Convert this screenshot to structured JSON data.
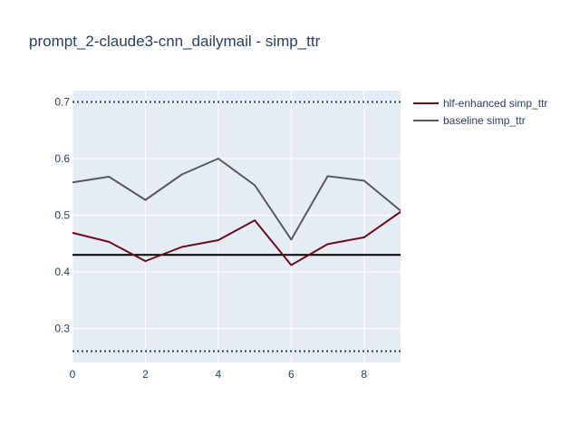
{
  "chart_data": {
    "type": "line",
    "title": "prompt_2-claude3-cnn_dailymail - simp_ttr",
    "xlabel": "",
    "ylabel": "",
    "x": [
      0,
      1,
      2,
      3,
      4,
      5,
      6,
      7,
      8,
      9
    ],
    "xlim": [
      0,
      9
    ],
    "ylim": [
      0.24,
      0.72
    ],
    "x_ticks": [
      0,
      2,
      4,
      6,
      8
    ],
    "y_ticks": [
      0.3,
      0.4,
      0.5,
      0.6,
      0.7
    ],
    "y_tick_labels": [
      "0.3",
      "0.4",
      "0.5",
      "0.6",
      "0.7"
    ],
    "series": [
      {
        "name": "hlf-enhanced simp_ttr",
        "color": "#6b0f1a",
        "values": [
          0.469,
          0.453,
          0.419,
          0.444,
          0.456,
          0.491,
          0.412,
          0.449,
          0.461,
          0.506
        ]
      },
      {
        "name": "baseline simp_ttr",
        "color": "#555a5f",
        "values": [
          0.558,
          0.568,
          0.527,
          0.572,
          0.6,
          0.553,
          0.457,
          0.569,
          0.561,
          0.508
        ]
      }
    ],
    "reference_lines": [
      {
        "y": 0.43,
        "style": "solid",
        "color": "#000000"
      },
      {
        "y": 0.7,
        "style": "dotted",
        "color": "#2a3f5f"
      },
      {
        "y": 0.26,
        "style": "dotted",
        "color": "#2a3f5f"
      }
    ],
    "grid": true,
    "legend_position": "top-right",
    "plot_background": "#e5ecf6"
  }
}
